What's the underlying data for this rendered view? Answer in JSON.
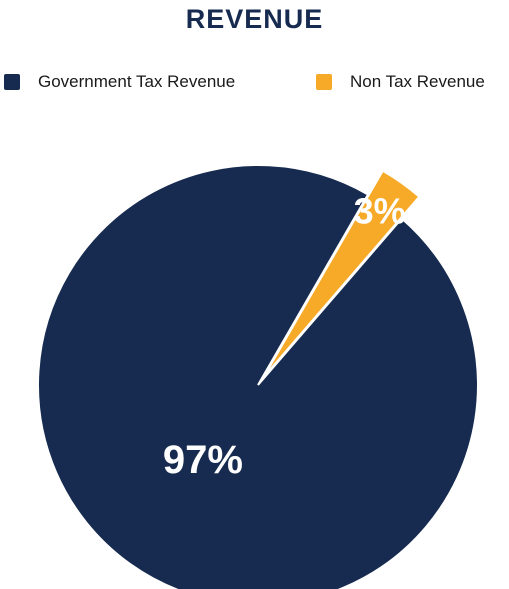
{
  "chart_data": {
    "type": "pie",
    "title": "REVENUE",
    "legend_position": "top",
    "slices": [
      {
        "label": "Government Tax Revenue",
        "value": 97,
        "display": "97%",
        "color": "#162b4f"
      },
      {
        "label": "Non Tax Revenue",
        "value": 3,
        "display": "3%",
        "color": "#f7a928"
      }
    ]
  }
}
